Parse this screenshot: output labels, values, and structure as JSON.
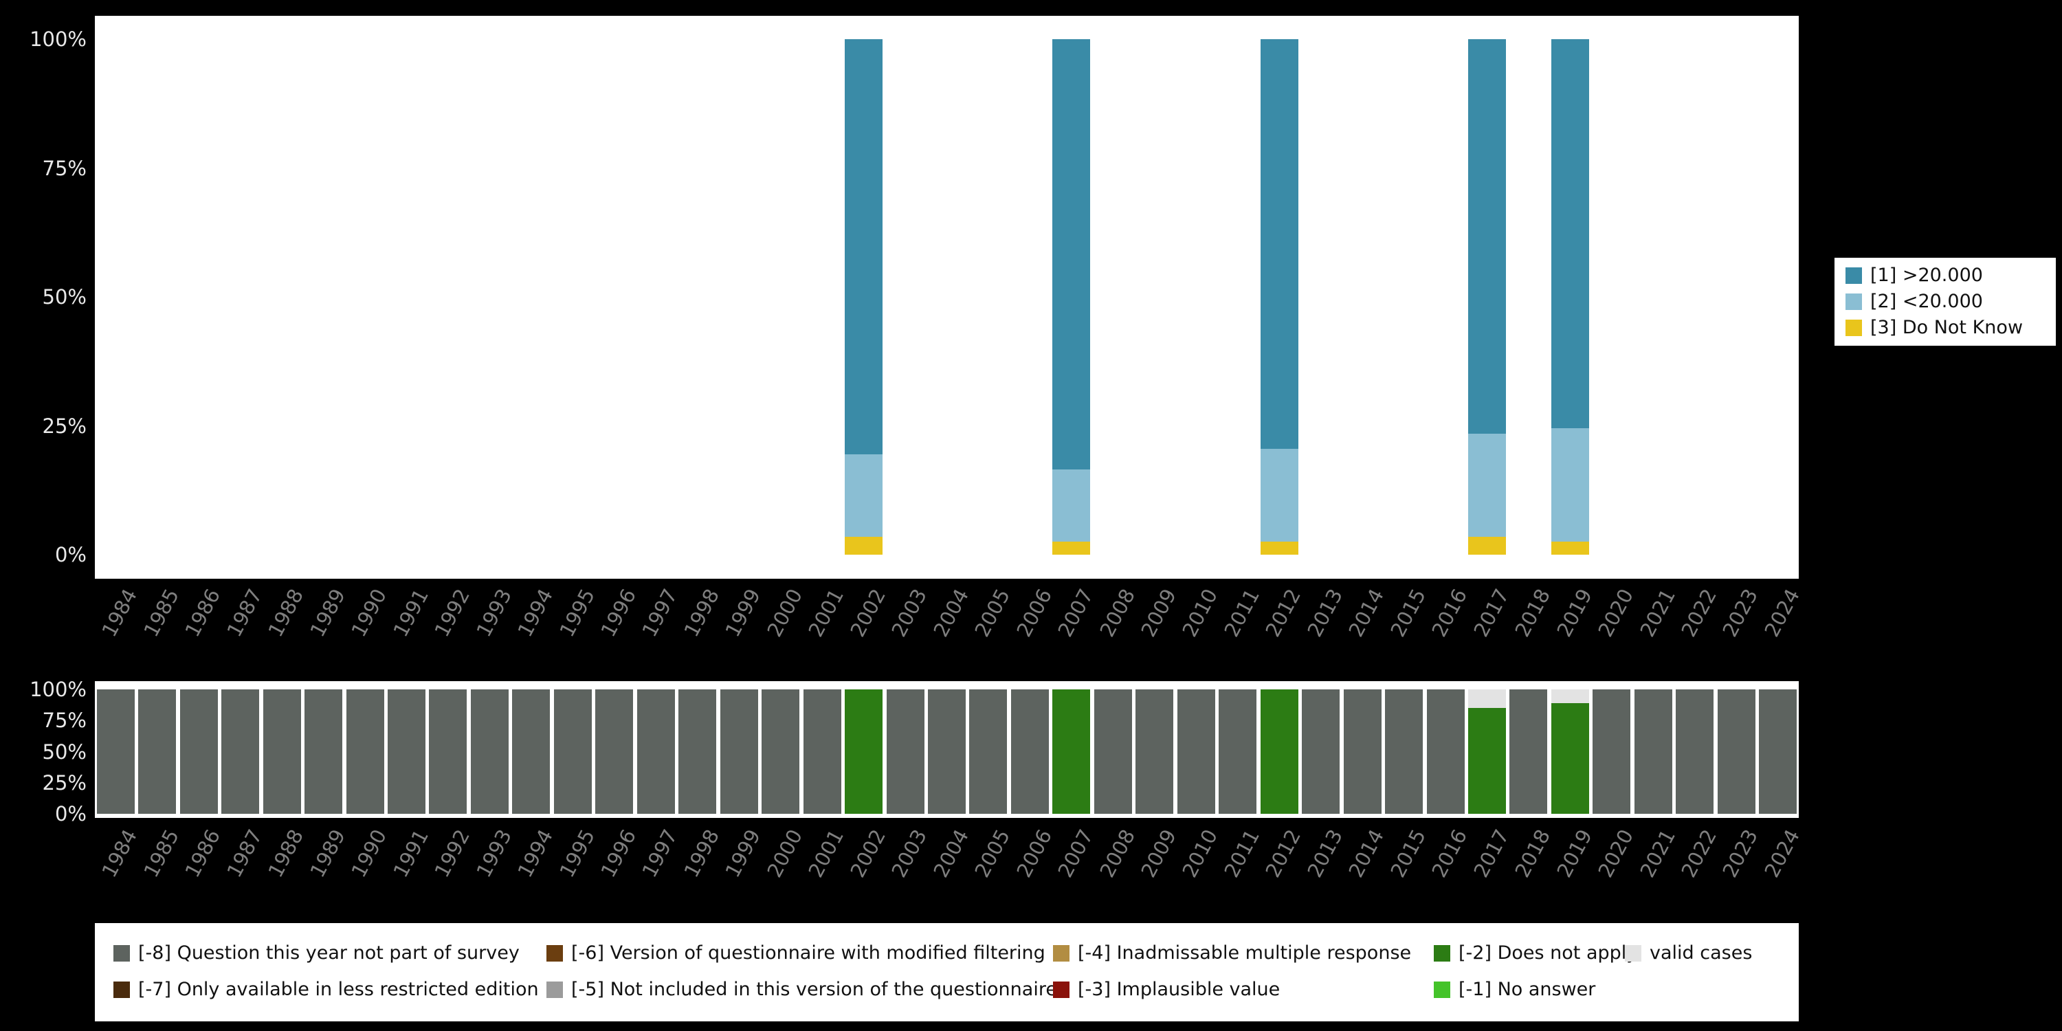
{
  "colors": {
    "background": "#000000",
    "plot_background": "#ffffff",
    "y_axis_text": "#e8e8e8",
    "x_axis_text": "#7f7f7f",
    "legend_text": "#111111"
  },
  "chart_data": [
    {
      "id": "values-chart",
      "type": "bar",
      "stacked": true,
      "title": "",
      "xlabel": "",
      "ylabel": "",
      "ylim": [
        0,
        100
      ],
      "unit": "percent",
      "grid": false,
      "legend_position": "right",
      "y_tick_labels": [
        "0%",
        "25%",
        "50%",
        "75%",
        "100%"
      ],
      "x": [
        "1984",
        "1985",
        "1986",
        "1987",
        "1988",
        "1989",
        "1990",
        "1991",
        "1992",
        "1993",
        "1994",
        "1995",
        "1996",
        "1997",
        "1998",
        "1999",
        "2000",
        "2001",
        "2002",
        "2003",
        "2004",
        "2005",
        "2006",
        "2007",
        "2008",
        "2009",
        "2010",
        "2011",
        "2012",
        "2013",
        "2014",
        "2015",
        "2016",
        "2017",
        "2018",
        "2019",
        "2020",
        "2021",
        "2022",
        "2023",
        "2024"
      ],
      "legend": [
        {
          "label": "[1] >20.000",
          "color": "#3a8ba7"
        },
        {
          "label": "[2] <20.000",
          "color": "#8abed3"
        },
        {
          "label": "[3] Do Not Know",
          "color": "#e9c51c"
        }
      ],
      "bars": {
        "2002": [
          [
            "[1] >20.000",
            80.5
          ],
          [
            "[2] <20.000",
            16.0
          ],
          [
            "[3] Do Not Know",
            3.5
          ]
        ],
        "2007": [
          [
            "[1] >20.000",
            83.5
          ],
          [
            "[2] <20.000",
            14.0
          ],
          [
            "[3] Do Not Know",
            2.5
          ]
        ],
        "2012": [
          [
            "[1] >20.000",
            79.5
          ],
          [
            "[2] <20.000",
            18.0
          ],
          [
            "[3] Do Not Know",
            2.5
          ]
        ],
        "2017": [
          [
            "[1] >20.000",
            76.5
          ],
          [
            "[2] <20.000",
            20.0
          ],
          [
            "[3] Do Not Know",
            3.5
          ]
        ],
        "2019": [
          [
            "[1] >20.000",
            75.5
          ],
          [
            "[2] <20.000",
            22.0
          ],
          [
            "[3] Do Not Know",
            2.5
          ]
        ]
      }
    },
    {
      "id": "missing-values-chart",
      "type": "bar",
      "stacked": true,
      "title": "",
      "xlabel": "",
      "ylabel": "",
      "ylim": [
        0,
        100
      ],
      "unit": "percent",
      "grid": false,
      "legend_position": "bottom",
      "y_tick_labels": [
        "0%",
        "25%",
        "50%",
        "75%",
        "100%"
      ],
      "x": [
        "1984",
        "1985",
        "1986",
        "1987",
        "1988",
        "1989",
        "1990",
        "1991",
        "1992",
        "1993",
        "1994",
        "1995",
        "1996",
        "1997",
        "1998",
        "1999",
        "2000",
        "2001",
        "2002",
        "2003",
        "2004",
        "2005",
        "2006",
        "2007",
        "2008",
        "2009",
        "2010",
        "2011",
        "2012",
        "2013",
        "2014",
        "2015",
        "2016",
        "2017",
        "2018",
        "2019",
        "2020",
        "2021",
        "2022",
        "2023",
        "2024"
      ],
      "legend_rows": [
        [
          {
            "label": "[-8] Question this year not part of survey",
            "color": "#5d635f"
          },
          {
            "label": "[-6] Version of questionnaire with modified filtering",
            "color": "#6b3e10"
          },
          {
            "label": "[-4] Inadmissable multiple response",
            "color": "#b28d42"
          },
          {
            "label": "[-2] Does not apply",
            "color": "#2c7c14"
          },
          {
            "label": "valid cases",
            "color": "#e3e3e3"
          }
        ],
        [
          {
            "label": "[-7] Only available in less restricted edition",
            "color": "#4a2b0d"
          },
          {
            "label": "[-5] Not included in this version of the questionnaire",
            "color": "#9b9b9b"
          },
          {
            "label": "[-3] Implausible value",
            "color": "#8a120b"
          },
          {
            "label": "[-1] No answer",
            "color": "#44c32a"
          }
        ]
      ],
      "default_bar": [
        [
          "[-8] Question this year not part of survey",
          100
        ]
      ],
      "bars": {
        "2002": [
          [
            "[-2] Does not apply",
            100
          ]
        ],
        "2007": [
          [
            "[-2] Does not apply",
            100
          ]
        ],
        "2012": [
          [
            "[-2] Does not apply",
            100
          ]
        ],
        "2017": [
          [
            "valid cases",
            15
          ],
          [
            "[-2] Does not apply",
            85
          ]
        ],
        "2019": [
          [
            "valid cases",
            11
          ],
          [
            "[-2] Does not apply",
            89
          ]
        ]
      }
    }
  ]
}
